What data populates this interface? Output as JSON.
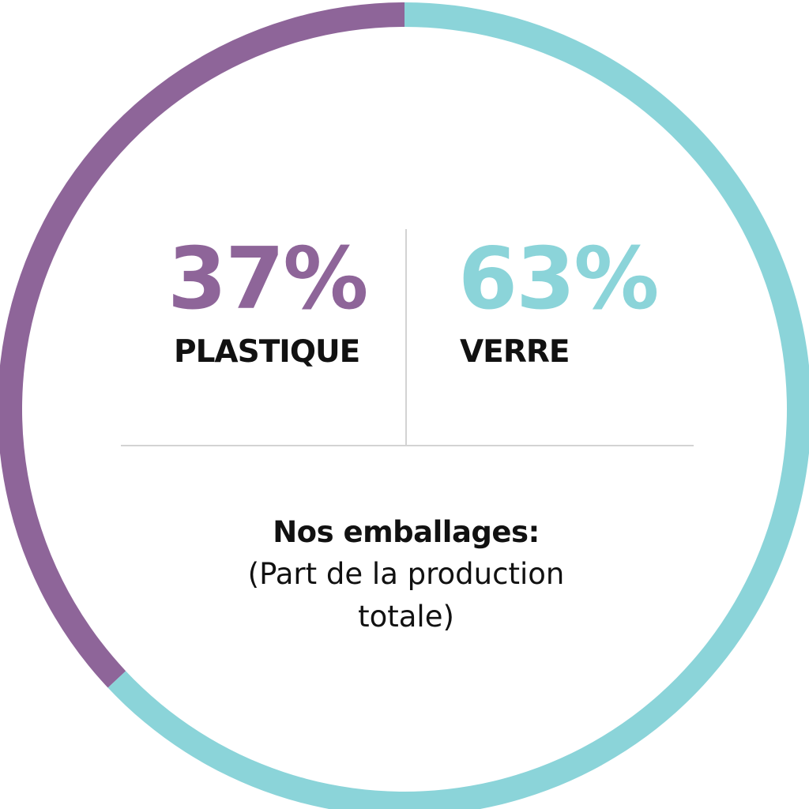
{
  "chart_data": {
    "type": "pie",
    "variant": "donut",
    "categories": [
      "PLASTIQUE",
      "VERRE"
    ],
    "values": [
      37,
      63
    ],
    "value_labels": [
      "37%",
      "63%"
    ],
    "colors": [
      "#8e6599",
      "#8bd4d9"
    ],
    "title": "Nos emballages:",
    "subtitle": "(Part de la production totale)",
    "legend": "center"
  }
}
